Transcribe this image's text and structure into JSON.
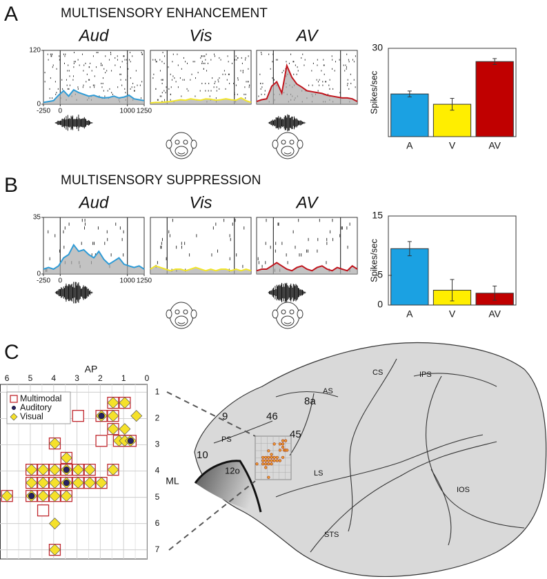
{
  "panel_labels": [
    "A",
    "B",
    "C"
  ],
  "chart_data": [
    {
      "type": "line",
      "suptitle": "MULTISENSORY ENHANCEMENT",
      "title": "Aud",
      "x": [
        -250,
        -175,
        -100,
        -25,
        50,
        125,
        200,
        275,
        350,
        425,
        500,
        575,
        650,
        725,
        800,
        875,
        950,
        1025,
        1100,
        1175,
        1250
      ],
      "series": [
        {
          "color": "#2e9bd6",
          "values": [
            4,
            6,
            8,
            20,
            30,
            18,
            32,
            26,
            22,
            18,
            20,
            16,
            14,
            15,
            18,
            14,
            16,
            20,
            12,
            10,
            8
          ]
        }
      ],
      "xlim": [
        -250,
        1250
      ],
      "ylim": [
        0,
        120
      ],
      "xticks": [
        -250,
        0,
        1000,
        1250
      ],
      "yticks": [
        0,
        120
      ],
      "vlines": [
        0,
        1000
      ]
    },
    {
      "type": "line",
      "title": "Vis",
      "x": [
        -250,
        -175,
        -100,
        -25,
        50,
        125,
        200,
        275,
        350,
        425,
        500,
        575,
        650,
        725,
        800,
        875,
        950,
        1025,
        1100,
        1175,
        1250
      ],
      "series": [
        {
          "color": "#f2e52a",
          "values": [
            3,
            4,
            4,
            5,
            6,
            8,
            10,
            9,
            12,
            10,
            9,
            12,
            11,
            9,
            10,
            12,
            10,
            9,
            14,
            8,
            4
          ]
        }
      ],
      "xlim": [
        -250,
        1250
      ],
      "ylim": [
        0,
        120
      ],
      "vlines": [
        0,
        1000
      ]
    },
    {
      "type": "line",
      "title": "AV",
      "x": [
        -250,
        -175,
        -100,
        -25,
        50,
        125,
        200,
        275,
        350,
        425,
        500,
        575,
        650,
        725,
        800,
        875,
        950,
        1025,
        1100,
        1175,
        1250
      ],
      "series": [
        {
          "color": "#c0141c",
          "values": [
            6,
            10,
            12,
            40,
            50,
            25,
            86,
            60,
            45,
            38,
            30,
            28,
            26,
            24,
            20,
            18,
            16,
            14,
            14,
            12,
            6
          ]
        }
      ],
      "xlim": [
        -250,
        1250
      ],
      "ylim": [
        0,
        120
      ],
      "vlines": [
        0,
        1000
      ]
    },
    {
      "type": "bar",
      "categories": [
        "A",
        "V",
        "AV"
      ],
      "values": [
        14.5,
        11,
        25.5
      ],
      "errors": [
        1,
        2,
        1
      ],
      "colors": [
        "#1ba1e2",
        "#ffee00",
        "#c00000"
      ],
      "ylabel": "Spikes/sec",
      "ylim": [
        0,
        30
      ],
      "yticks": [
        30
      ]
    },
    {
      "type": "line",
      "suptitle": "MULTISENSORY SUPPRESSION",
      "title": "Aud",
      "x": [
        -250,
        -175,
        -100,
        -25,
        50,
        125,
        200,
        275,
        350,
        425,
        500,
        575,
        650,
        725,
        800,
        875,
        950,
        1025,
        1100,
        1175,
        1250
      ],
      "series": [
        {
          "color": "#2e9bd6",
          "values": [
            3,
            4,
            3,
            5,
            10,
            12,
            18,
            14,
            15,
            12,
            10,
            14,
            9,
            6,
            8,
            10,
            6,
            5,
            4,
            5,
            3
          ]
        }
      ],
      "xlim": [
        -250,
        1250
      ],
      "ylim": [
        0,
        35
      ],
      "xticks": [
        -250,
        0,
        1000,
        1250
      ],
      "yticks": [
        0,
        35
      ],
      "vlines": [
        0,
        1000
      ]
    },
    {
      "type": "line",
      "title": "Vis",
      "x": [
        -250,
        -175,
        -100,
        -25,
        50,
        125,
        200,
        275,
        350,
        425,
        500,
        575,
        650,
        725,
        800,
        875,
        950,
        1025,
        1100,
        1175,
        1250
      ],
      "series": [
        {
          "color": "#f2e52a",
          "values": [
            3,
            5,
            4,
            3,
            2,
            3,
            3,
            2,
            3,
            4,
            3,
            2,
            3,
            2,
            3,
            3,
            2,
            3,
            2,
            3,
            2
          ]
        }
      ],
      "xlim": [
        -250,
        1250
      ],
      "ylim": [
        0,
        35
      ],
      "vlines": [
        0,
        1000
      ]
    },
    {
      "type": "line",
      "title": "AV",
      "x": [
        -250,
        -175,
        -100,
        -25,
        50,
        125,
        200,
        275,
        350,
        425,
        500,
        575,
        650,
        725,
        800,
        875,
        950,
        1025,
        1100,
        1175,
        1250
      ],
      "series": [
        {
          "color": "#c0141c",
          "values": [
            2,
            3,
            3,
            5,
            7,
            5,
            3,
            2,
            4,
            5,
            3,
            2,
            4,
            5,
            3,
            2,
            4,
            3,
            2,
            5,
            3
          ]
        }
      ],
      "xlim": [
        -250,
        1250
      ],
      "ylim": [
        0,
        35
      ],
      "vlines": [
        0,
        1000
      ]
    },
    {
      "type": "bar",
      "categories": [
        "A",
        "V",
        "AV"
      ],
      "values": [
        9.5,
        2.5,
        2
      ],
      "errors": [
        1.2,
        1.8,
        1.2
      ],
      "colors": [
        "#1ba1e2",
        "#ffee00",
        "#c00000"
      ],
      "ylabel": "Spikes/sec",
      "ylim": [
        0,
        15
      ],
      "yticks": [
        0,
        5,
        15
      ]
    },
    {
      "type": "scatter",
      "xlabel": "AP",
      "ylabel": "ML",
      "xlim": [
        6.3,
        0
      ],
      "ylim": [
        0.7,
        7.35
      ],
      "xticks": [
        6,
        5,
        4,
        3,
        2,
        1,
        0
      ],
      "yticks": [
        1,
        2,
        3,
        4,
        5,
        6,
        7
      ],
      "grid": true,
      "series": [
        {
          "name": "Multimodal",
          "marker": "square",
          "color": "#c0272d",
          "x": [
            1.45,
            0.95,
            2.95,
            1.95,
            1.45,
            1.45,
            1.95,
            1.2,
            0.95,
            0.7,
            3.95,
            3.45,
            4.95,
            4.45,
            3.95,
            3.45,
            2.95,
            2.45,
            1.45,
            4.95,
            4.45,
            3.95,
            3.45,
            2.95,
            2.45,
            1.95,
            6.0,
            4.95,
            4.45,
            3.95,
            3.45,
            4.45,
            3.95
          ],
          "y": [
            1.4,
            1.4,
            1.9,
            1.9,
            1.9,
            2.4,
            2.85,
            2.85,
            2.85,
            2.85,
            2.95,
            3.5,
            3.95,
            3.95,
            3.95,
            3.95,
            3.95,
            3.95,
            3.95,
            4.45,
            4.45,
            4.45,
            4.45,
            4.45,
            4.45,
            4.45,
            4.95,
            4.95,
            4.95,
            4.95,
            4.95,
            5.5,
            7.0
          ]
        },
        {
          "name": "Auditory",
          "marker": "circle",
          "color": "#262262",
          "x": [
            1.95,
            0.7,
            3.45,
            3.45,
            4.95
          ],
          "y": [
            1.9,
            2.85,
            3.95,
            4.45,
            4.95
          ]
        },
        {
          "name": "Visual",
          "marker": "diamond",
          "color": "#f5e12a",
          "x": [
            1.45,
            0.95,
            1.95,
            1.45,
            0.45,
            1.45,
            0.95,
            1.2,
            0.95,
            0.7,
            3.95,
            3.45,
            4.95,
            4.45,
            3.95,
            3.45,
            2.95,
            2.45,
            1.45,
            4.95,
            4.45,
            3.95,
            3.45,
            2.95,
            2.45,
            1.95,
            6.0,
            4.95,
            4.45,
            3.95,
            3.45,
            3.95,
            3.95
          ],
          "y": [
            1.4,
            1.4,
            1.9,
            1.9,
            1.9,
            2.4,
            2.4,
            2.85,
            2.85,
            2.85,
            2.95,
            3.5,
            3.95,
            3.95,
            3.95,
            3.95,
            3.95,
            3.95,
            3.95,
            4.45,
            4.45,
            4.45,
            4.45,
            4.45,
            4.45,
            4.45,
            4.95,
            4.95,
            4.95,
            4.95,
            4.95,
            6.0,
            7.0
          ]
        }
      ]
    }
  ],
  "brain": {
    "labels": [
      "CS",
      "IPS",
      "AS",
      "8a",
      "9",
      "46",
      "45",
      "PS",
      "10",
      "12o",
      "LS",
      "IOS",
      "STS"
    ]
  }
}
